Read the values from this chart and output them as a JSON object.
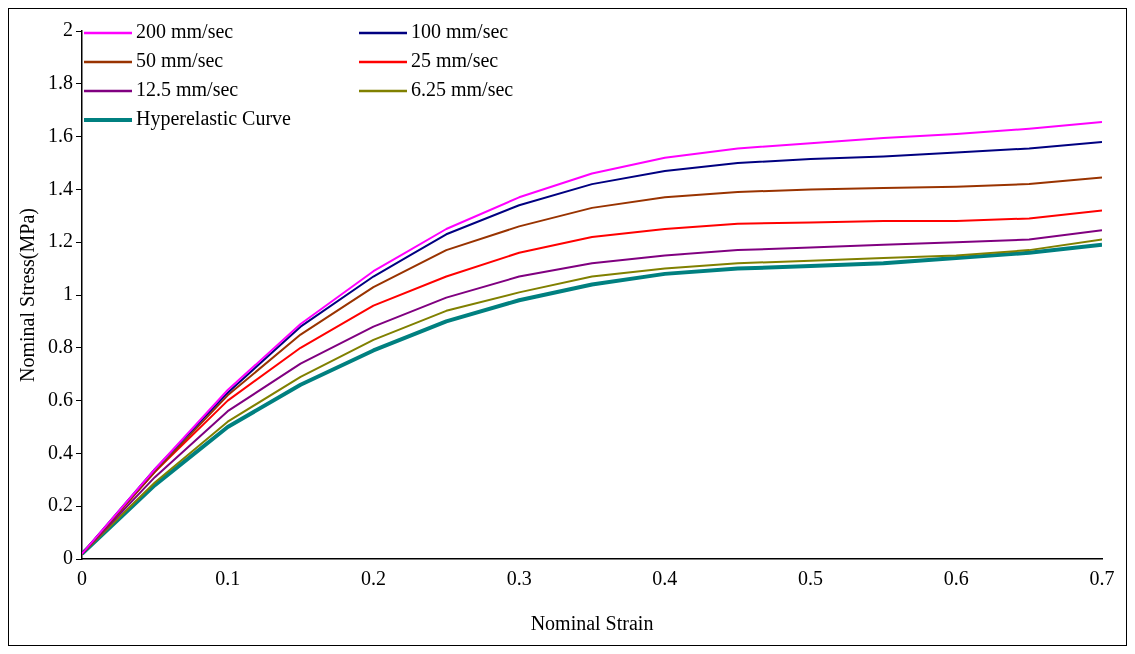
{
  "chart_data": {
    "type": "line",
    "xlabel": "Nominal Strain",
    "ylabel": "Nominal Stress(MPa)",
    "x": [
      0,
      0.05,
      0.1,
      0.15,
      0.2,
      0.25,
      0.3,
      0.35,
      0.4,
      0.45,
      0.5,
      0.55,
      0.6,
      0.65,
      0.7
    ],
    "series": [
      {
        "name": "200 mm/sec",
        "color": "#ff00ff",
        "values": [
          0.02,
          0.34,
          0.64,
          0.89,
          1.09,
          1.25,
          1.37,
          1.46,
          1.52,
          1.555,
          1.575,
          1.595,
          1.61,
          1.63,
          1.655
        ]
      },
      {
        "name": "100 mm/sec",
        "color": "#000080",
        "values": [
          0.02,
          0.34,
          0.63,
          0.88,
          1.07,
          1.23,
          1.34,
          1.42,
          1.47,
          1.5,
          1.515,
          1.525,
          1.54,
          1.555,
          1.58
        ]
      },
      {
        "name": "50 mm/sec",
        "color": "#993300",
        "values": [
          0.02,
          0.33,
          0.62,
          0.85,
          1.03,
          1.17,
          1.26,
          1.33,
          1.37,
          1.39,
          1.4,
          1.405,
          1.41,
          1.42,
          1.445
        ]
      },
      {
        "name": "25 mm/sec",
        "color": "#ff0000",
        "values": [
          0.02,
          0.33,
          0.6,
          0.8,
          0.96,
          1.07,
          1.16,
          1.22,
          1.25,
          1.27,
          1.275,
          1.28,
          1.28,
          1.29,
          1.32
        ]
      },
      {
        "name": "12.5 mm/sec",
        "color": "#800080",
        "values": [
          0.02,
          0.31,
          0.56,
          0.74,
          0.88,
          0.99,
          1.07,
          1.12,
          1.15,
          1.17,
          1.18,
          1.19,
          1.2,
          1.21,
          1.245
        ]
      },
      {
        "name": "6.25 mm/sec",
        "color": "#808000",
        "values": [
          0.02,
          0.29,
          0.52,
          0.69,
          0.83,
          0.94,
          1.01,
          1.07,
          1.1,
          1.12,
          1.13,
          1.14,
          1.15,
          1.17,
          1.21
        ]
      },
      {
        "name": "Hyperelastic Curve",
        "color": "#008080",
        "values": [
          0.02,
          0.28,
          0.5,
          0.66,
          0.79,
          0.9,
          0.98,
          1.04,
          1.08,
          1.1,
          1.11,
          1.12,
          1.14,
          1.16,
          1.19
        ]
      }
    ],
    "xlim": [
      0,
      0.7
    ],
    "xticks": [
      0,
      0.1,
      0.2,
      0.3,
      0.4,
      0.5,
      0.6,
      0.7
    ],
    "ylim": [
      0,
      2
    ],
    "yticks": [
      0,
      0.2,
      0.4,
      0.6,
      0.8,
      1,
      1.2,
      1.4,
      1.6,
      1.8,
      2
    ],
    "grid": false,
    "legend": "top left",
    "marker": "none",
    "line_style": "solid"
  }
}
